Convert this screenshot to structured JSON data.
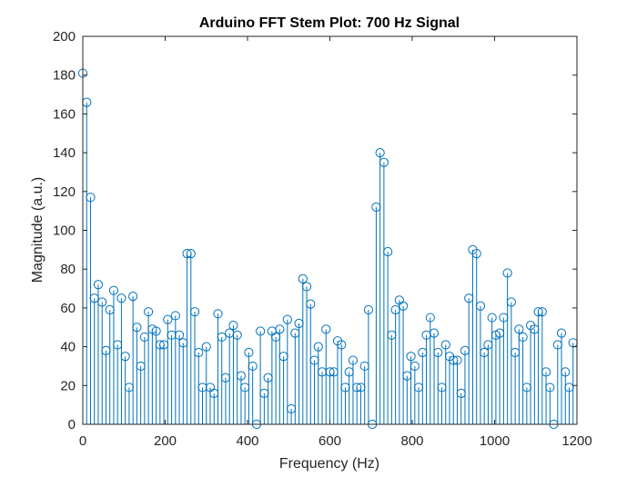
{
  "chart_data": {
    "type": "stem",
    "title": "Arduino FFT Stem Plot: 700 Hz Signal",
    "xlabel": "Frequency (Hz)",
    "ylabel": "Magnitude (a.u.)",
    "xlim": [
      0,
      1200
    ],
    "ylim": [
      0,
      200
    ],
    "xticks": [
      0,
      200,
      400,
      600,
      800,
      1000,
      1200
    ],
    "yticks": [
      0,
      20,
      40,
      60,
      80,
      100,
      120,
      140,
      160,
      180,
      200
    ],
    "grid": false,
    "color": "#0072bd",
    "x_step": 9.375,
    "values": [
      181,
      166,
      117,
      65,
      72,
      63,
      38,
      59,
      69,
      41,
      65,
      35,
      19,
      66,
      50,
      30,
      45,
      58,
      49,
      48,
      41,
      41,
      54,
      46,
      56,
      46,
      42,
      88,
      88,
      58,
      37,
      19,
      40,
      19,
      16,
      57,
      45,
      24,
      47,
      51,
      46,
      25,
      19,
      37,
      30,
      0,
      48,
      16,
      24,
      48,
      45,
      49,
      35,
      54,
      8,
      47,
      52,
      75,
      71,
      62,
      33,
      40,
      27,
      49,
      27,
      27,
      43,
      41,
      19,
      27,
      33,
      19,
      19,
      30,
      59,
      0,
      112,
      140,
      135,
      89,
      46,
      59,
      64,
      61,
      25,
      35,
      30,
      19,
      37,
      46,
      55,
      47,
      37,
      19,
      41,
      35,
      33,
      33,
      16,
      38,
      65,
      90,
      88,
      61,
      37,
      41,
      55,
      46,
      47,
      55,
      78,
      63,
      37,
      49,
      45,
      19,
      51,
      49,
      58,
      58,
      27,
      19,
      0,
      41,
      47,
      27,
      19,
      42
    ]
  }
}
